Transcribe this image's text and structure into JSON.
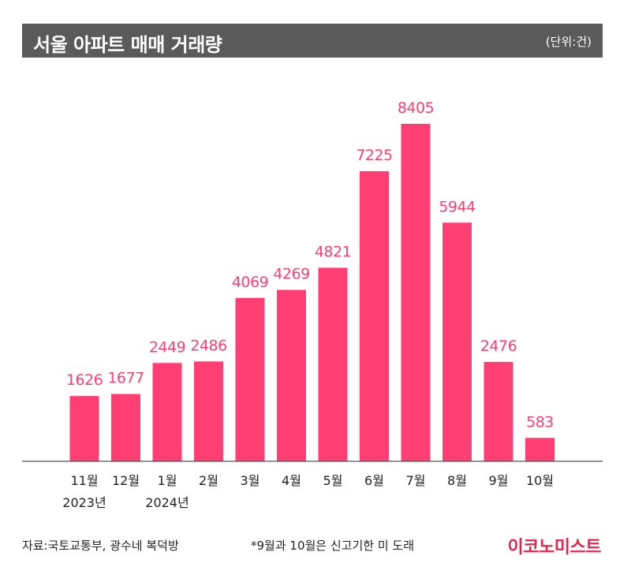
{
  "header": {
    "title": "서울 아파트 매매 거래량",
    "unit": "(단위:건)"
  },
  "footer": {
    "source": "자료:국토교통부, 광수네 복덕방",
    "note": "*9월과 10월은 신고기한 미 도래",
    "brand": "이코노미스트"
  },
  "chart_data": {
    "type": "bar",
    "title": "서울 아파트 매매 거래량",
    "unit": "(단위:건)",
    "categories": [
      "11월",
      "12월",
      "1월",
      "2월",
      "3월",
      "4월",
      "5월",
      "6월",
      "7월",
      "8월",
      "9월",
      "10월"
    ],
    "year_labels": [
      {
        "category_index": 0,
        "label": "2023년"
      },
      {
        "category_index": 2,
        "label": "2024년"
      }
    ],
    "values": [
      1626,
      1677,
      2449,
      2486,
      4069,
      4269,
      4821,
      7225,
      8405,
      5944,
      2476,
      583
    ],
    "ylim": [
      0,
      8405
    ],
    "grid": false,
    "bar_color": "#ff3f73",
    "label_color": "#ff3f73"
  }
}
